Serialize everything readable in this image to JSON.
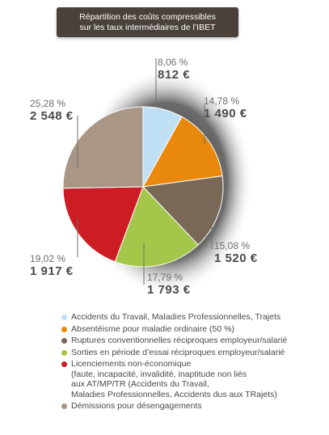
{
  "header": {
    "title_line1": "Répartition des coûts compressibles",
    "title_line2": "sur les taux intermédiaires de l’IBET"
  },
  "chart_data": {
    "type": "pie",
    "slices": [
      {
        "name": "Accidents du Travail, Maladies Professionnelles, Trajets",
        "percent": 8.06,
        "percent_label": "8,06 %",
        "amount_label": "812 €",
        "value": 812,
        "color": "#bfe0f4"
      },
      {
        "name": "Absentéisme pour maladie ordinaire (50 %)",
        "percent": 14.78,
        "percent_label": "14,78 %",
        "amount_label": "1 490 €",
        "value": 1490,
        "color": "#e8890e"
      },
      {
        "name": "Ruptures conventionnelles réciproques employeur/salarié",
        "percent": 15.08,
        "percent_label": "15,08 %",
        "amount_label": "1 520 €",
        "value": 1520,
        "color": "#7a6857"
      },
      {
        "name": "Sorties en période d’essai réciproques employeur/salarié",
        "percent": 17.79,
        "percent_label": "17,79 %",
        "amount_label": "1 793 €",
        "value": 1793,
        "color": "#a4c64a"
      },
      {
        "name": "Licenciements non-économique",
        "percent": 19.02,
        "percent_label": "19,02 %",
        "amount_label": "1 917 €",
        "value": 1917,
        "color": "#cc1d25"
      },
      {
        "name": "Démissions pour désengagements",
        "percent": 25.28,
        "percent_label": "25,28 %",
        "amount_label": "2 548 €",
        "value": 2548,
        "color": "#a99685"
      }
    ]
  },
  "legend": [
    {
      "lines": [
        "Accidents du Travail, Maladies Professionnelles, Trajets"
      ],
      "color": "#bfe0f4"
    },
    {
      "lines": [
        "Absentéisme pour maladie ordinaire (50 %)"
      ],
      "color": "#e8890e"
    },
    {
      "lines": [
        "Ruptures conventionnelles réciproques employeur/salarié"
      ],
      "color": "#7a6857"
    },
    {
      "lines": [
        "Sorties en période d’essai réciproques employeur/salarié"
      ],
      "color": "#a4c64a"
    },
    {
      "lines": [
        "Licenciements non-économique",
        "(faute, incapacité, invalidité, inaptitude non liés",
        "aux AT/MP/TR (Accidents du Travail,",
        "Maladies Professionnelles, Accidents dus aux TRajets)"
      ],
      "color": "#cc1d25"
    },
    {
      "lines": [
        "Démissions pour désengagements"
      ],
      "color": "#a99685"
    }
  ]
}
